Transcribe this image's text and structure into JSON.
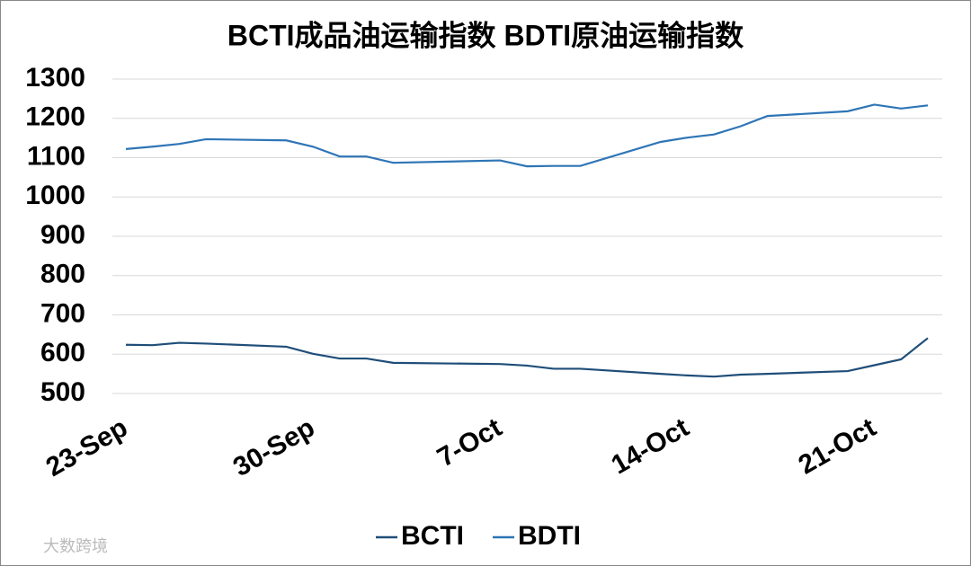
{
  "chart_data": {
    "type": "line",
    "title": "BCTI成品油运输指数 BDTI原油运输指数",
    "x": [
      "23-Sep",
      "24-Sep",
      "25-Sep",
      "26-Sep",
      "29-Sep",
      "30-Sep",
      "1-Oct",
      "2-Oct",
      "3-Oct",
      "7-Oct",
      "8-Oct",
      "9-Oct",
      "10-Oct",
      "13-Oct",
      "14-Oct",
      "15-Oct",
      "16-Oct",
      "17-Oct",
      "20-Oct",
      "21-Oct",
      "22-Oct",
      "23-Oct"
    ],
    "series": [
      {
        "name": "BCTI",
        "color": "#1f4e79",
        "values": [
          624,
          623,
          629,
          627,
          619,
          601,
          589,
          589,
          578,
          575,
          571,
          563,
          563,
          550,
          546,
          543,
          548,
          550,
          557,
          572,
          587,
          641
        ]
      },
      {
        "name": "BDTI",
        "color": "#2e75b6",
        "values": [
          1122,
          1128,
          1135,
          1147,
          1144,
          1128,
          1103,
          1103,
          1087,
          1093,
          1078,
          1079,
          1079,
          1140,
          1151,
          1159,
          1180,
          1206,
          1218,
          1235,
          1225,
          1233
        ]
      }
    ],
    "xlim": [
      "23-Sep",
      "23-Oct"
    ],
    "xticks": [
      "23-Sep",
      "30-Sep",
      "7-Oct",
      "14-Oct",
      "21-Oct"
    ],
    "ylim": [
      500,
      1300
    ],
    "yticks": [
      500,
      600,
      700,
      800,
      900,
      1000,
      1100,
      1200,
      1300
    ],
    "grid": true,
    "legend": "bottom",
    "watermark": "大数跨境"
  }
}
